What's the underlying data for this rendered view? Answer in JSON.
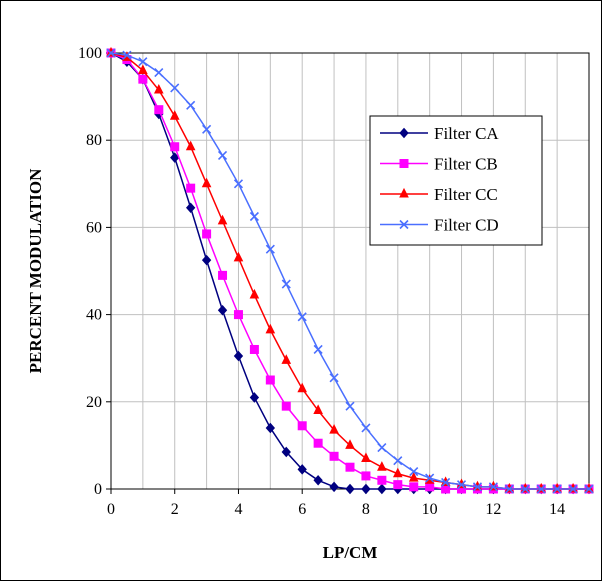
{
  "chart_data": {
    "type": "line",
    "title": "",
    "xlabel": "LP/CM",
    "ylabel": "PERCENT MODULATION",
    "xlim": [
      0,
      15
    ],
    "ylim": [
      0,
      100
    ],
    "xticks": [
      0,
      2,
      4,
      6,
      8,
      10,
      12,
      14
    ],
    "yticks": [
      0,
      20,
      40,
      60,
      80,
      100
    ],
    "grid": true,
    "legend_position": "top-right",
    "x": [
      0,
      0.5,
      1,
      1.5,
      2,
      2.5,
      3,
      3.5,
      4,
      4.5,
      5,
      5.5,
      6,
      6.5,
      7,
      7.5,
      8,
      8.5,
      9,
      9.5,
      10,
      10.5,
      11,
      11.5,
      12,
      12.5,
      13,
      13.5,
      14,
      14.5,
      15
    ],
    "series": [
      {
        "name": "Filter CA",
        "color": "#000080",
        "marker": "diamond",
        "values": [
          100,
          98,
          94,
          86,
          76,
          64.5,
          52.5,
          41,
          30.5,
          21,
          14,
          8.5,
          4.5,
          2,
          0.5,
          0,
          0,
          0,
          0,
          0,
          0,
          0,
          0,
          0,
          0,
          0,
          0,
          0,
          0,
          0,
          0
        ]
      },
      {
        "name": "Filter CB",
        "color": "#FF00FF",
        "marker": "square",
        "values": [
          100,
          98.5,
          94,
          87,
          78.5,
          69,
          58.5,
          49,
          40,
          32,
          25,
          19,
          14.5,
          10.5,
          7.5,
          5,
          3,
          2,
          1,
          0.5,
          0.5,
          0,
          0,
          0,
          0,
          0,
          0,
          0,
          0,
          0,
          0
        ]
      },
      {
        "name": "Filter CC",
        "color": "#FF0000",
        "marker": "triangle",
        "values": [
          100,
          99,
          96,
          91.5,
          85.5,
          78.5,
          70,
          61.5,
          53,
          44.5,
          36.5,
          29.5,
          23,
          18,
          13.5,
          10,
          7,
          5,
          3.5,
          2.5,
          2,
          1.5,
          1,
          0.5,
          0.5,
          0,
          0,
          0,
          0,
          0,
          0
        ]
      },
      {
        "name": "Filter CD",
        "color": "#4A6FFF",
        "marker": "x",
        "values": [
          100,
          99.5,
          98,
          95.5,
          92,
          88,
          82.5,
          76.5,
          70,
          62.5,
          55,
          47,
          39.5,
          32,
          25.5,
          19,
          14,
          9.5,
          6.5,
          4,
          2.5,
          1.5,
          1,
          0.5,
          0.5,
          0,
          0,
          0,
          0,
          0,
          0
        ]
      }
    ]
  }
}
